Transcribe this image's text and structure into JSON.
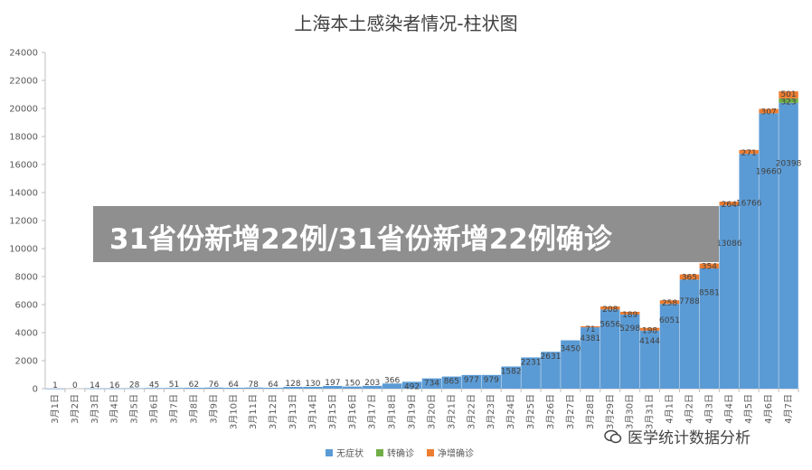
{
  "chart_data": {
    "type": "bar",
    "stacked": true,
    "title": "上海本土感染者情况-柱状图",
    "categories": [
      "3月1日",
      "3月2日",
      "3月3日",
      "3月4日",
      "3月5日",
      "3月6日",
      "3月7日",
      "3月8日",
      "3月9日",
      "3月10日",
      "3月11日",
      "3月12日",
      "3月13日",
      "3月14日",
      "3月15日",
      "3月16日",
      "3月17日",
      "3月18日",
      "3月19日",
      "3月20日",
      "3月21日",
      "3月22日",
      "3月23日",
      "3月24日",
      "3月25日",
      "3月26日",
      "3月27日",
      "3月28日",
      "3月29日",
      "3月30日",
      "3月31日",
      "4月1日",
      "4月2日",
      "4月3日",
      "4月4日",
      "4月5日",
      "4月6日",
      "4月7日"
    ],
    "series": [
      {
        "name": "无症状",
        "color": "#5b9bd5",
        "values": [
          1,
          0,
          14,
          16,
          28,
          45,
          51,
          62,
          76,
          64,
          78,
          64,
          128,
          130,
          197,
          150,
          203,
          366,
          492,
          734,
          865,
          977,
          979,
          1582,
          2231,
          2631,
          3450,
          4381,
          5656,
          5298,
          4144,
          6051,
          7788,
          8581,
          13086,
          16766,
          19660,
          20398
        ],
        "labels": [
          "1",
          "0",
          "14",
          "16",
          "28",
          "45",
          "51",
          "62",
          "76",
          "64",
          "78",
          "64",
          "128",
          "130",
          "197",
          "150",
          "203",
          "366",
          "492",
          "734",
          "865",
          "977",
          "979",
          "1582",
          "2231",
          "2631",
          "3450",
          "4381",
          "5656",
          "5298",
          "4144",
          "6051",
          "7788",
          "8581",
          "13086",
          "16766",
          "19660",
          "20398"
        ]
      },
      {
        "name": "转确诊",
        "color": "#70ad47",
        "values": [
          0,
          0,
          0,
          0,
          0,
          0,
          0,
          0,
          0,
          0,
          0,
          0,
          0,
          0,
          0,
          0,
          0,
          0,
          0,
          0,
          0,
          0,
          0,
          0,
          0,
          0,
          0,
          0,
          0,
          0,
          0,
          0,
          0,
          0,
          0,
          0,
          0,
          323
        ],
        "labels": [
          "",
          "",
          "",
          "",
          "",
          "",
          "",
          "",
          "",
          "",
          "",
          "",
          "",
          "",
          "",
          "",
          "",
          "",
          "",
          "",
          "",
          "",
          "",
          "",
          "",
          "",
          "",
          "",
          "",
          "",
          "",
          "",
          "",
          "",
          "",
          "",
          "",
          "323"
        ]
      },
      {
        "name": "净增确诊",
        "color": "#ed7d31",
        "values": [
          0,
          0,
          0,
          0,
          0,
          0,
          0,
          0,
          0,
          0,
          0,
          0,
          0,
          0,
          0,
          0,
          0,
          0,
          0,
          0,
          0,
          0,
          0,
          0,
          0,
          0,
          0,
          71,
          208,
          189,
          198,
          258,
          365,
          354,
          264,
          271,
          307,
          501
        ],
        "labels": [
          "",
          "",
          "",
          "",
          "",
          "",
          "",
          "",
          "",
          "",
          "",
          "",
          "",
          "",
          "",
          "",
          "",
          "",
          "",
          "",
          "",
          "",
          "",
          "",
          "",
          "",
          "",
          "71",
          "208",
          "189",
          "198",
          "258",
          "365",
          "354",
          "264",
          "271",
          "307",
          "501"
        ]
      }
    ],
    "ylim": [
      0,
      24000
    ],
    "yticks": [
      0,
      2000,
      4000,
      6000,
      8000,
      10000,
      12000,
      14000,
      16000,
      18000,
      20000,
      22000,
      24000
    ],
    "grid": false,
    "legend_position": "bottom"
  },
  "overlay": {
    "banner_text": "31省份新增22例/31省份新增22例确诊",
    "watermark_text": "医学统计数据分析"
  }
}
